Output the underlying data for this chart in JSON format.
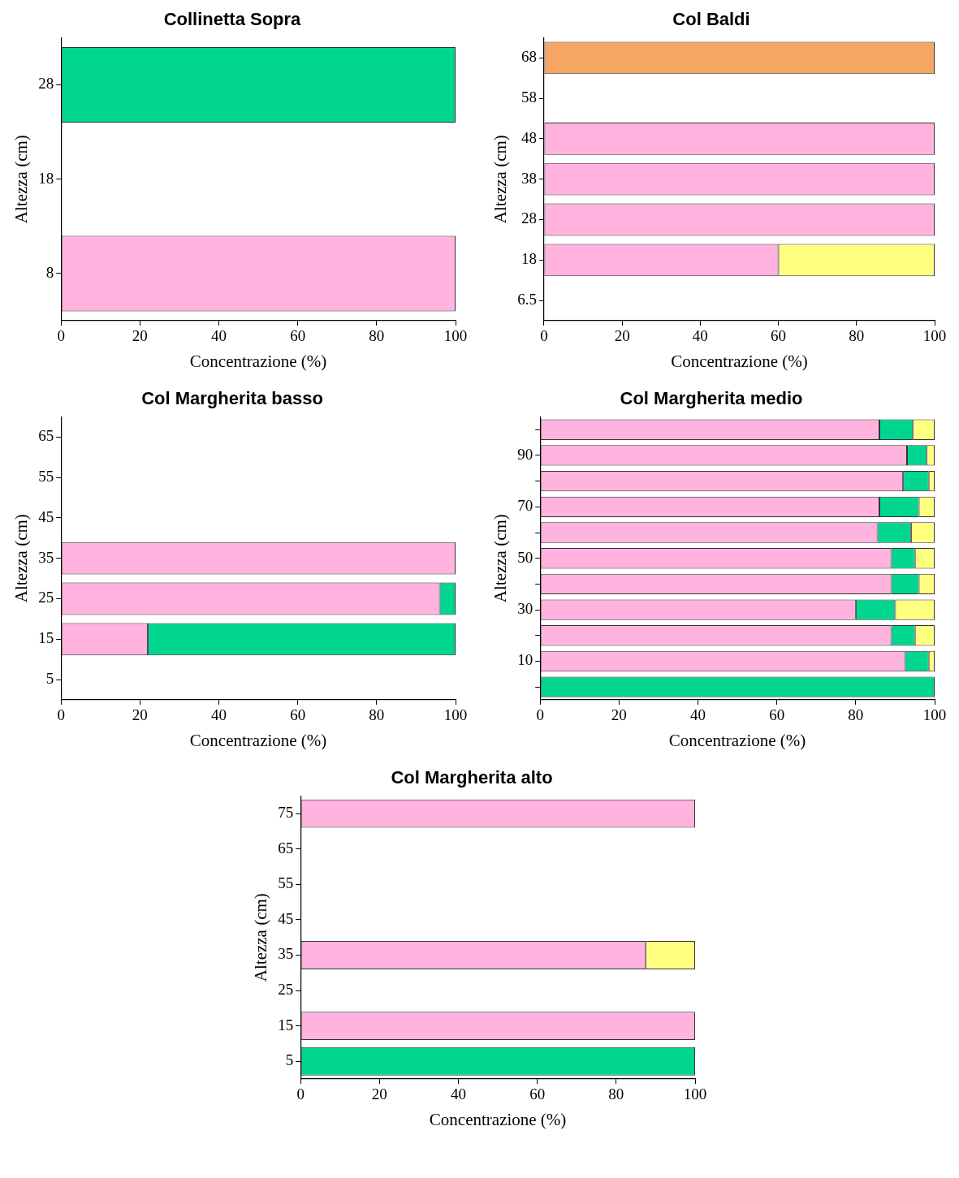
{
  "chart_data": [
    {
      "type": "bar",
      "orientation": "horizontal",
      "stacked": true,
      "title": "Collinetta Sopra",
      "xlabel": "Concentrazione (%)",
      "ylabel": "Altezza (cm)",
      "categories": [
        "28",
        "18",
        "8"
      ],
      "xlim": [
        0,
        100
      ],
      "xticks": [
        0,
        20,
        40,
        60,
        80,
        100
      ],
      "series": [
        {
          "color": "#ffb3de",
          "values": [
            null,
            null,
            100
          ]
        },
        {
          "color": "#00d68f",
          "values": [
            100,
            null,
            null
          ]
        }
      ]
    },
    {
      "type": "bar",
      "orientation": "horizontal",
      "stacked": true,
      "title": "Col Baldi",
      "xlabel": "Concentrazione (%)",
      "ylabel": "Altezza (cm)",
      "categories": [
        "68",
        "58",
        "48",
        "38",
        "28",
        "18",
        "6.5"
      ],
      "xlim": [
        0,
        100
      ],
      "xticks": [
        0,
        20,
        40,
        60,
        80,
        100
      ],
      "series": [
        {
          "color": "#ffb3de",
          "values": [
            null,
            null,
            100,
            100,
            100,
            60,
            null
          ]
        },
        {
          "color": "#ffff80",
          "values": [
            null,
            null,
            null,
            null,
            null,
            40,
            null
          ]
        },
        {
          "color": "#f5a662",
          "values": [
            100,
            null,
            null,
            null,
            null,
            null,
            null
          ]
        }
      ]
    },
    {
      "type": "bar",
      "orientation": "horizontal",
      "stacked": true,
      "title": "Col Margherita basso",
      "xlabel": "Concentrazione (%)",
      "ylabel": "Altezza (cm)",
      "categories": [
        "65",
        "55",
        "45",
        "35",
        "25",
        "15",
        "5"
      ],
      "xlim": [
        0,
        100
      ],
      "xticks": [
        0,
        20,
        40,
        60,
        80,
        100
      ],
      "series": [
        {
          "color": "#ffb3de",
          "values": [
            null,
            null,
            null,
            100,
            96,
            22,
            null
          ]
        },
        {
          "color": "#00d68f",
          "values": [
            null,
            null,
            null,
            null,
            4,
            78,
            null
          ]
        }
      ]
    },
    {
      "type": "bar",
      "orientation": "horizontal",
      "stacked": true,
      "title": "Col Margherita medio",
      "xlabel": "Concentrazione (%)",
      "ylabel": "Altezza (cm)",
      "categories": [
        null,
        "90",
        null,
        "70",
        null,
        "50",
        null,
        "30",
        null,
        "10",
        null
      ],
      "xlim": [
        0,
        100
      ],
      "xticks": [
        0,
        20,
        40,
        60,
        80,
        100
      ],
      "series": [
        {
          "color": "#ffb3de",
          "values": [
            86,
            93,
            92,
            86,
            85.5,
            89,
            89,
            80,
            89,
            92.5,
            null
          ]
        },
        {
          "color": "#00d68f",
          "values": [
            8.5,
            5,
            6.5,
            10,
            8.5,
            6,
            7,
            10,
            6,
            6,
            100
          ]
        },
        {
          "color": "#ffff80",
          "values": [
            5.5,
            2,
            1.5,
            4,
            6,
            5,
            4,
            10,
            5,
            1.5,
            null
          ]
        }
      ]
    },
    {
      "type": "bar",
      "orientation": "horizontal",
      "stacked": true,
      "title": "Col Margherita alto",
      "xlabel": "Concentrazione (%)",
      "ylabel": "Altezza (cm)",
      "categories": [
        "75",
        "65",
        "55",
        "45",
        "35",
        "25",
        "15",
        "5"
      ],
      "xlim": [
        0,
        100
      ],
      "xticks": [
        0,
        20,
        40,
        60,
        80,
        100
      ],
      "series": [
        {
          "color": "#ffb3de",
          "values": [
            100,
            null,
            null,
            null,
            87.5,
            null,
            100,
            null
          ]
        },
        {
          "color": "#ffff80",
          "values": [
            null,
            null,
            null,
            null,
            12.5,
            null,
            null,
            null
          ]
        },
        {
          "color": "#00d68f",
          "values": [
            null,
            null,
            null,
            null,
            null,
            null,
            null,
            100
          ]
        }
      ]
    }
  ]
}
